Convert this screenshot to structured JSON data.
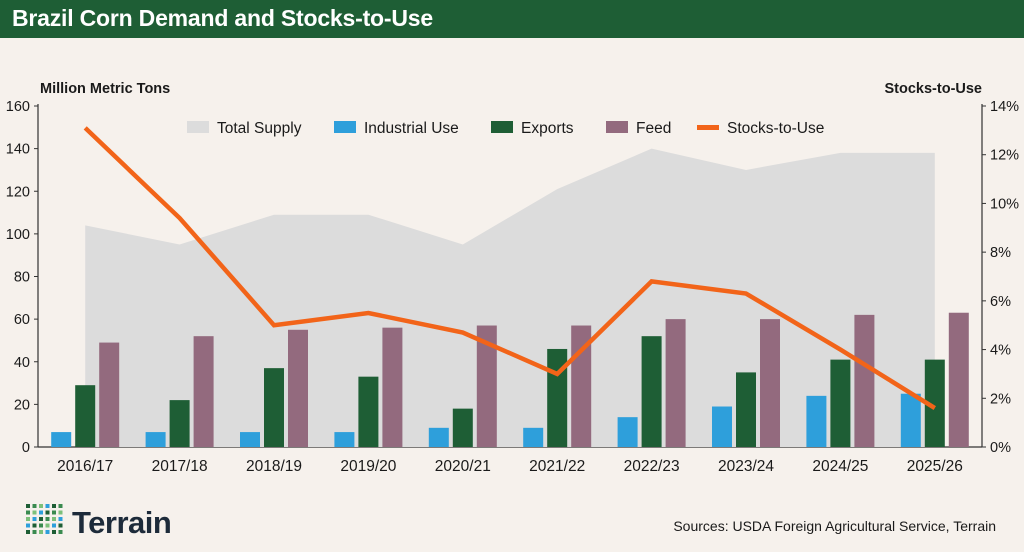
{
  "header": {
    "title": "Brazil Corn Demand and Stocks-to-Use"
  },
  "footer": {
    "brand": "Terrain",
    "sources": "Sources: USDA Foreign Agricultural Service, Terrain"
  },
  "colors": {
    "header_bg": "#1e5e35",
    "background": "#f6f1ec",
    "total_supply": "#dcdcdc",
    "industrial_use": "#2e9fdb",
    "exports": "#1e5e35",
    "feed": "#936a7e",
    "stocks_to_use": "#f26419"
  },
  "chart_data": {
    "type": "bar",
    "categories": [
      "2016/17",
      "2017/18",
      "2018/19",
      "2019/20",
      "2020/21",
      "2021/22",
      "2022/23",
      "2023/24",
      "2024/25",
      "2025/26"
    ],
    "series": [
      {
        "name": "Total Supply",
        "kind": "area",
        "axis": "left",
        "values": [
          104,
          95,
          109,
          109,
          95,
          121,
          140,
          130,
          138,
          138
        ]
      },
      {
        "name": "Industrial Use",
        "kind": "bar",
        "axis": "left",
        "values": [
          7,
          7,
          7,
          7,
          9,
          9,
          14,
          19,
          24,
          25
        ]
      },
      {
        "name": "Exports",
        "kind": "bar",
        "axis": "left",
        "values": [
          29,
          22,
          37,
          33,
          18,
          46,
          52,
          35,
          41,
          41
        ]
      },
      {
        "name": "Feed",
        "kind": "bar",
        "axis": "left",
        "values": [
          49,
          52,
          55,
          56,
          57,
          57,
          60,
          60,
          62,
          63
        ]
      },
      {
        "name": "Stocks-to-Use",
        "kind": "line",
        "axis": "right",
        "values": [
          13.1,
          9.4,
          5.0,
          5.5,
          4.7,
          3.0,
          6.8,
          6.3,
          4.0,
          1.6
        ]
      }
    ],
    "ylabel": "Million Metric Tons",
    "y2label": "Stocks-to-Use",
    "ylim": [
      0,
      160
    ],
    "yticks": [
      "0",
      "20",
      "40",
      "60",
      "80",
      "100",
      "120",
      "140",
      "160"
    ],
    "y2lim": [
      0,
      14
    ],
    "y2ticks": [
      "0%",
      "2%",
      "4%",
      "6%",
      "8%",
      "10%",
      "12%",
      "14%"
    ],
    "legend": [
      "Total Supply",
      "Industrial Use",
      "Exports",
      "Feed",
      "Stocks-to-Use"
    ],
    "legend_position": "top-center",
    "grid": false
  }
}
